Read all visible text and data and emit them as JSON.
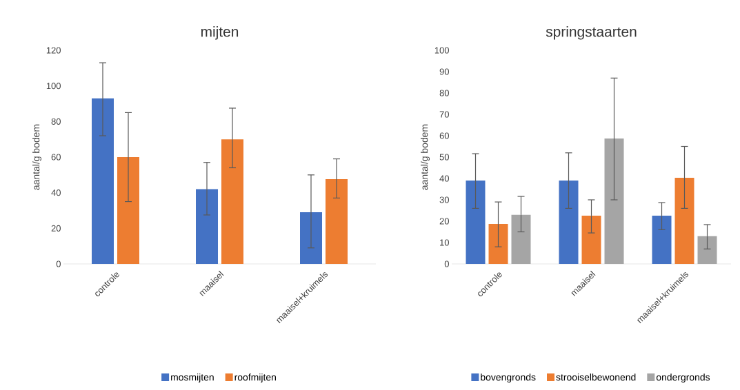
{
  "chart_data": [
    {
      "type": "bar",
      "title": "mijten",
      "ylabel": "aantal/g bodem",
      "categories": [
        "controle",
        "maaisel",
        "maaisel+kruimels"
      ],
      "series": [
        {
          "name": "mosmijten",
          "color": "#4472c4",
          "values": [
            93,
            42,
            29
          ],
          "errors": [
            [
              72,
              113
            ],
            [
              27.5,
              57
            ],
            [
              9,
              50
            ]
          ]
        },
        {
          "name": "roofmijten",
          "color": "#ed7d31",
          "values": [
            60,
            70,
            47.6
          ],
          "errors": [
            [
              35,
              85
            ],
            [
              54,
              87.5
            ],
            [
              37,
              59
            ]
          ]
        }
      ],
      "ylim": [
        0,
        120
      ],
      "yticks": [
        0,
        20,
        40,
        60,
        80,
        100,
        120
      ],
      "legend": "bottom"
    },
    {
      "type": "bar",
      "title": "springstaarten",
      "ylabel": "aantal/g bodem",
      "categories": [
        "controle",
        "maaisel",
        "maaisel+kruimels"
      ],
      "series": [
        {
          "name": "bovengronds",
          "color": "#4472c4",
          "values": [
            39,
            39,
            22.6
          ],
          "errors": [
            [
              26,
              51.6
            ],
            [
              26,
              52
            ],
            [
              16,
              28.7
            ]
          ]
        },
        {
          "name": "strooiselbewonend",
          "color": "#ed7d31",
          "values": [
            18.7,
            22.6,
            40.3
          ],
          "errors": [
            [
              8,
              29
            ],
            [
              14.5,
              30
            ],
            [
              26,
              55
            ]
          ]
        },
        {
          "name": "ondergronds",
          "color": "#a5a5a5",
          "values": [
            23,
            58.7,
            13
          ],
          "errors": [
            [
              15,
              31.6
            ],
            [
              30,
              87
            ],
            [
              7,
              18.4
            ]
          ]
        }
      ],
      "ylim": [
        0,
        100
      ],
      "yticks": [
        0,
        10,
        20,
        30,
        40,
        50,
        60,
        70,
        80,
        90,
        100
      ],
      "legend": "bottom"
    }
  ]
}
